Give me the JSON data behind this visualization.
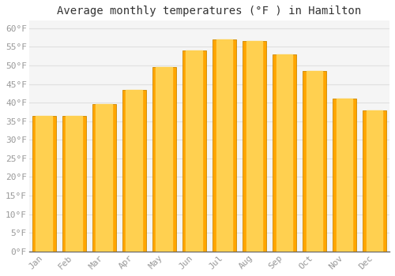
{
  "title": "Average monthly temperatures (°F ) in Hamilton",
  "months": [
    "Jan",
    "Feb",
    "Mar",
    "Apr",
    "May",
    "Jun",
    "Jul",
    "Aug",
    "Sep",
    "Oct",
    "Nov",
    "Dec"
  ],
  "values": [
    36.5,
    36.5,
    39.5,
    43.5,
    49.5,
    54.0,
    57.0,
    56.5,
    53.0,
    48.5,
    41.0,
    38.0
  ],
  "bar_color_main": "#FFA500",
  "bar_color_light": "#FFD050",
  "ylim": [
    0,
    62
  ],
  "yticks": [
    0,
    5,
    10,
    15,
    20,
    25,
    30,
    35,
    40,
    45,
    50,
    55,
    60
  ],
  "ylabel_format": "°F",
  "background_color": "#ffffff",
  "plot_bg_color": "#f5f5f5",
  "grid_color": "#e0e0e0",
  "title_fontsize": 10,
  "tick_fontsize": 8,
  "tick_color": "#999999",
  "axis_color": "#555555"
}
